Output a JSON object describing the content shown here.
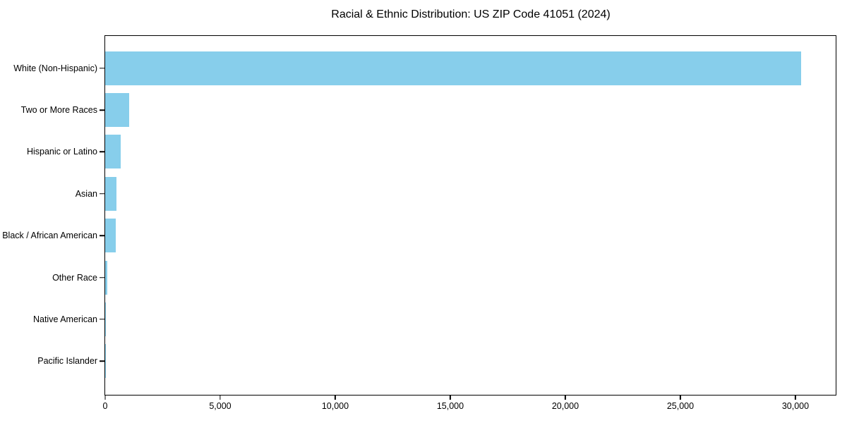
{
  "chart_data": {
    "type": "bar",
    "orientation": "horizontal",
    "title": "Racial & Ethnic Distribution: US ZIP Code 41051 (2024)",
    "categories": [
      "White (Non-Hispanic)",
      "Two or More Races",
      "Hispanic or Latino",
      "Asian",
      "Black / African American",
      "Other Race",
      "Native American",
      "Pacific Islander"
    ],
    "values": [
      30250,
      1050,
      680,
      480,
      450,
      85,
      25,
      10
    ],
    "xlabel": "",
    "ylabel": "",
    "xlim": [
      0,
      31750
    ],
    "x_ticks": [
      {
        "value": 0,
        "label": "0"
      },
      {
        "value": 5000,
        "label": "5,000"
      },
      {
        "value": 10000,
        "label": "10,000"
      },
      {
        "value": 15000,
        "label": "15,000"
      },
      {
        "value": 20000,
        "label": "20,000"
      },
      {
        "value": 25000,
        "label": "25,000"
      },
      {
        "value": 30000,
        "label": "30,000"
      }
    ],
    "bar_color": "#87CEEB",
    "frame_color": "#000000",
    "background_color": "#FFFFFF",
    "grid": false,
    "legend_position": "none"
  }
}
